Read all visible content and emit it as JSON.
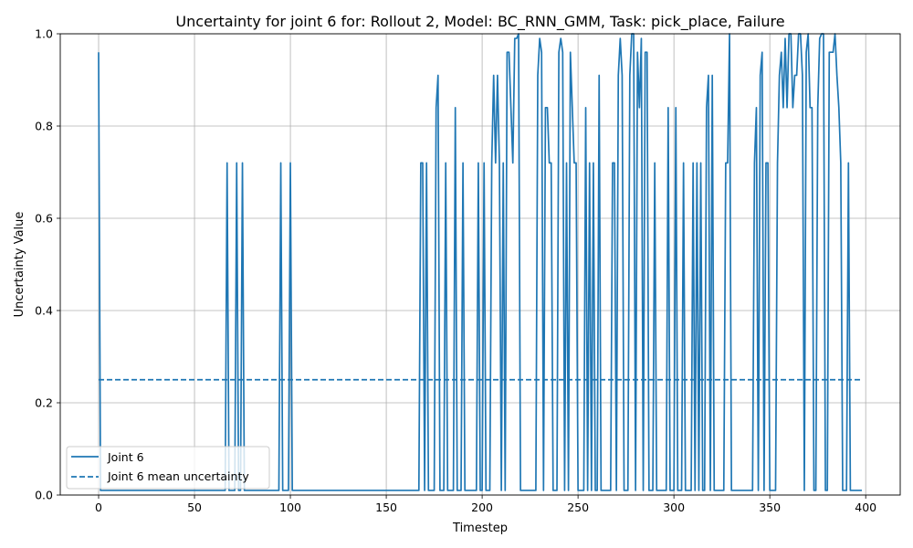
{
  "chart_data": {
    "type": "line",
    "title": "Uncertainty for joint 6 for: Rollout 2, Model: BC_RNN_GMM, Task: pick_place, Failure",
    "xlabel": "Timestep",
    "ylabel": "Uncertainty Value",
    "xlim": [
      -20,
      418
    ],
    "ylim": [
      0,
      1
    ],
    "xticks": [
      0,
      50,
      100,
      150,
      200,
      250,
      300,
      350,
      400
    ],
    "yticks": [
      0.0,
      0.2,
      0.4,
      0.6,
      0.8,
      1.0
    ],
    "xtick_labels": [
      "0",
      "50",
      "100",
      "150",
      "200",
      "250",
      "300",
      "350",
      "400"
    ],
    "ytick_labels": [
      "0.0",
      "0.2",
      "0.4",
      "0.6",
      "0.8",
      "1.0"
    ],
    "grid": true,
    "legend_position": "lower-left",
    "color": "#1f77b4",
    "series": [
      {
        "name": "Joint 6",
        "style": "solid",
        "points": [
          [
            0,
            0.96
          ],
          [
            1,
            0.01
          ],
          [
            66,
            0.01
          ],
          [
            67,
            0.72
          ],
          [
            68,
            0.01
          ],
          [
            71,
            0.01
          ],
          [
            72,
            0.72
          ],
          [
            73,
            0.01
          ],
          [
            74,
            0.01
          ],
          [
            75,
            0.72
          ],
          [
            76,
            0.01
          ],
          [
            94,
            0.01
          ],
          [
            95,
            0.72
          ],
          [
            96,
            0.01
          ],
          [
            99,
            0.01
          ],
          [
            100,
            0.72
          ],
          [
            101,
            0.01
          ],
          [
            167,
            0.01
          ],
          [
            168,
            0.72
          ],
          [
            169,
            0.72
          ],
          [
            170,
            0.01
          ],
          [
            171,
            0.72
          ],
          [
            172,
            0.01
          ],
          [
            175,
            0.01
          ],
          [
            176,
            0.84
          ],
          [
            177,
            0.91
          ],
          [
            178,
            0.01
          ],
          [
            180,
            0.01
          ],
          [
            181,
            0.72
          ],
          [
            182,
            0.01
          ],
          [
            185,
            0.01
          ],
          [
            186,
            0.84
          ],
          [
            187,
            0.01
          ],
          [
            189,
            0.01
          ],
          [
            190,
            0.72
          ],
          [
            191,
            0.01
          ],
          [
            197,
            0.01
          ],
          [
            198,
            0.72
          ],
          [
            199,
            0.01
          ],
          [
            200,
            0.01
          ],
          [
            201,
            0.72
          ],
          [
            202,
            0.01
          ],
          [
            204,
            0.01
          ],
          [
            205,
            0.72
          ],
          [
            206,
            0.91
          ],
          [
            207,
            0.72
          ],
          [
            208,
            0.91
          ],
          [
            209,
            0.72
          ],
          [
            210,
            0.01
          ],
          [
            211,
            0.72
          ],
          [
            212,
            0.01
          ],
          [
            213,
            0.96
          ],
          [
            214,
            0.96
          ],
          [
            215,
            0.84
          ],
          [
            216,
            0.72
          ],
          [
            217,
            0.99
          ],
          [
            218,
            0.99
          ],
          [
            219,
            1.0
          ],
          [
            220,
            0.01
          ],
          [
            228,
            0.01
          ],
          [
            229,
            0.91
          ],
          [
            230,
            0.99
          ],
          [
            231,
            0.96
          ],
          [
            232,
            0.01
          ],
          [
            233,
            0.84
          ],
          [
            234,
            0.84
          ],
          [
            235,
            0.72
          ],
          [
            236,
            0.72
          ],
          [
            237,
            0.01
          ],
          [
            239,
            0.01
          ],
          [
            240,
            0.96
          ],
          [
            241,
            0.99
          ],
          [
            242,
            0.96
          ],
          [
            243,
            0.01
          ],
          [
            244,
            0.72
          ],
          [
            245,
            0.01
          ],
          [
            246,
            0.96
          ],
          [
            247,
            0.84
          ],
          [
            248,
            0.72
          ],
          [
            249,
            0.72
          ],
          [
            250,
            0.01
          ],
          [
            253,
            0.01
          ],
          [
            254,
            0.84
          ],
          [
            255,
            0.01
          ],
          [
            256,
            0.72
          ],
          [
            257,
            0.01
          ],
          [
            258,
            0.72
          ],
          [
            259,
            0.01
          ],
          [
            260,
            0.01
          ],
          [
            261,
            0.91
          ],
          [
            262,
            0.01
          ],
          [
            267,
            0.01
          ],
          [
            268,
            0.72
          ],
          [
            269,
            0.72
          ],
          [
            270,
            0.01
          ],
          [
            271,
            0.91
          ],
          [
            272,
            0.99
          ],
          [
            273,
            0.91
          ],
          [
            274,
            0.01
          ],
          [
            276,
            0.01
          ],
          [
            277,
            0.91
          ],
          [
            278,
            1.0
          ],
          [
            279,
            1.0
          ],
          [
            280,
            0.01
          ],
          [
            281,
            0.96
          ],
          [
            282,
            0.84
          ],
          [
            283,
            0.99
          ],
          [
            284,
            0.01
          ],
          [
            285,
            0.96
          ],
          [
            286,
            0.96
          ],
          [
            287,
            0.01
          ],
          [
            289,
            0.01
          ],
          [
            290,
            0.72
          ],
          [
            291,
            0.01
          ],
          [
            296,
            0.01
          ],
          [
            297,
            0.84
          ],
          [
            298,
            0.01
          ],
          [
            300,
            0.01
          ],
          [
            301,
            0.84
          ],
          [
            302,
            0.01
          ],
          [
            304,
            0.01
          ],
          [
            305,
            0.72
          ],
          [
            306,
            0.01
          ],
          [
            309,
            0.01
          ],
          [
            310,
            0.72
          ],
          [
            311,
            0.01
          ],
          [
            312,
            0.72
          ],
          [
            313,
            0.01
          ],
          [
            314,
            0.72
          ],
          [
            315,
            0.01
          ],
          [
            316,
            0.01
          ],
          [
            317,
            0.84
          ],
          [
            318,
            0.91
          ],
          [
            319,
            0.01
          ],
          [
            320,
            0.91
          ],
          [
            321,
            0.01
          ],
          [
            326,
            0.01
          ],
          [
            327,
            0.72
          ],
          [
            328,
            0.72
          ],
          [
            329,
            1.0
          ],
          [
            330,
            0.01
          ],
          [
            341,
            0.01
          ],
          [
            342,
            0.72
          ],
          [
            343,
            0.84
          ],
          [
            344,
            0.01
          ],
          [
            345,
            0.91
          ],
          [
            346,
            0.96
          ],
          [
            347,
            0.01
          ],
          [
            348,
            0.72
          ],
          [
            349,
            0.72
          ],
          [
            350,
            0.01
          ],
          [
            353,
            0.01
          ],
          [
            354,
            0.72
          ],
          [
            355,
            0.91
          ],
          [
            356,
            0.96
          ],
          [
            357,
            0.84
          ],
          [
            358,
            0.99
          ],
          [
            359,
            0.84
          ],
          [
            360,
            1.0
          ],
          [
            361,
            1.0
          ],
          [
            362,
            0.84
          ],
          [
            363,
            0.91
          ],
          [
            364,
            0.91
          ],
          [
            365,
            1.0
          ],
          [
            366,
            1.0
          ],
          [
            367,
            0.91
          ],
          [
            368,
            0.01
          ],
          [
            369,
            0.96
          ],
          [
            370,
            1.0
          ],
          [
            371,
            0.84
          ],
          [
            372,
            0.84
          ],
          [
            373,
            0.01
          ],
          [
            374,
            0.01
          ],
          [
            375,
            0.84
          ],
          [
            376,
            0.99
          ],
          [
            377,
            1.0
          ],
          [
            378,
            1.0
          ],
          [
            379,
            0.01
          ],
          [
            380,
            0.01
          ],
          [
            381,
            0.96
          ],
          [
            382,
            0.96
          ],
          [
            383,
            0.96
          ],
          [
            384,
            1.0
          ],
          [
            385,
            0.91
          ],
          [
            386,
            0.84
          ],
          [
            387,
            0.72
          ],
          [
            388,
            0.01
          ],
          [
            390,
            0.01
          ],
          [
            391,
            0.72
          ],
          [
            392,
            0.01
          ],
          [
            395,
            0.01
          ],
          [
            398,
            0.01
          ]
        ]
      },
      {
        "name": "Joint 6 mean uncertainty",
        "style": "dashed",
        "points": [
          [
            0,
            0.25
          ],
          [
            398,
            0.25
          ]
        ]
      }
    ]
  }
}
